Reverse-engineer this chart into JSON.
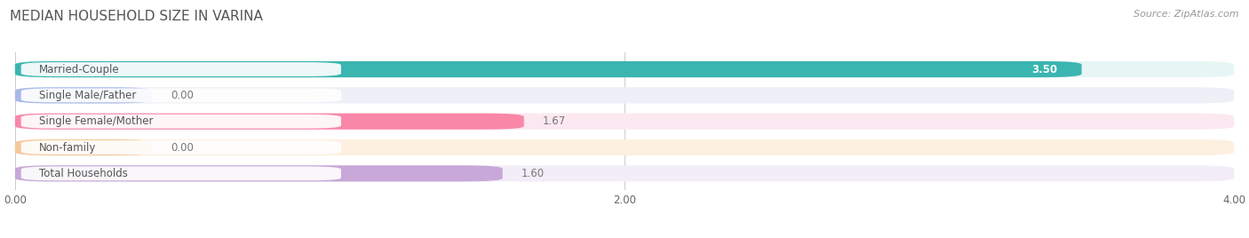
{
  "title": "MEDIAN HOUSEHOLD SIZE IN VARINA",
  "source": "Source: ZipAtlas.com",
  "categories": [
    "Married-Couple",
    "Single Male/Father",
    "Single Female/Mother",
    "Non-family",
    "Total Households"
  ],
  "values": [
    3.5,
    0.0,
    1.67,
    0.0,
    1.6
  ],
  "bar_colors": [
    "#3ab5b0",
    "#a8b8e8",
    "#f988a8",
    "#f5c89a",
    "#c8a8d8"
  ],
  "bar_bg_colors": [
    "#e8f5f5",
    "#eef0f8",
    "#fce8f0",
    "#fdf0e0",
    "#f3edf8"
  ],
  "xlim": [
    0,
    4.0
  ],
  "xticks": [
    0.0,
    2.0,
    4.0
  ],
  "title_fontsize": 11,
  "label_fontsize": 8.5,
  "value_fontsize": 8.5,
  "source_fontsize": 8,
  "bar_height": 0.62,
  "background_color": "#ffffff",
  "zero_bar_width": 0.45
}
